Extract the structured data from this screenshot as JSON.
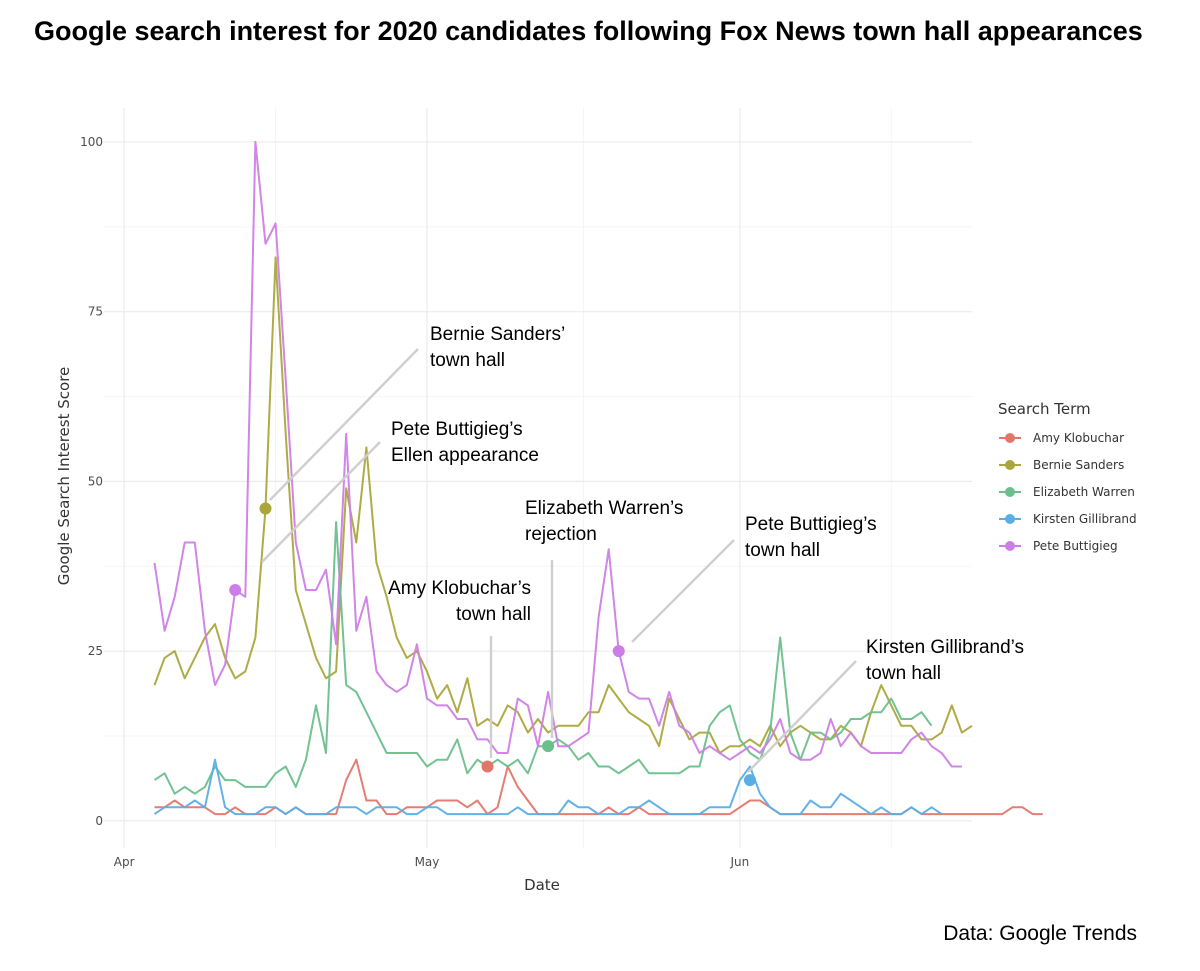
{
  "title": "Google search interest for 2020 candidates following Fox News town hall appearances",
  "source": "Data: Google Trends",
  "chart_data": {
    "type": "line",
    "xlabel": "Date",
    "ylabel": "Google Search Interest Score",
    "x_ticks": [
      {
        "date": "2019-04-01",
        "label": "Apr"
      },
      {
        "date": "2019-05-01",
        "label": "May"
      },
      {
        "date": "2019-06-01",
        "label": "Jun"
      }
    ],
    "y_ticks": [
      0,
      25,
      50,
      75,
      100
    ],
    "ylim": [
      -4,
      105
    ],
    "xlim": [
      "2019-03-30",
      "2019-06-24"
    ],
    "x_start": "2019-04-04",
    "grid": true,
    "legend": {
      "title": "Search Term",
      "position": "right"
    },
    "series": [
      {
        "name": "Amy Klobuchar",
        "color": "#e3766b",
        "values": [
          2,
          2,
          3,
          2,
          2,
          2,
          1,
          1,
          2,
          1,
          1,
          1,
          2,
          1,
          2,
          1,
          1,
          1,
          1,
          6,
          9,
          3,
          3,
          1,
          1,
          2,
          2,
          2,
          3,
          3,
          3,
          2,
          3,
          1,
          2,
          8,
          5,
          3,
          1,
          1,
          1,
          1,
          1,
          1,
          1,
          2,
          1,
          1,
          2,
          1,
          1,
          1,
          1,
          1,
          1,
          1,
          1,
          1,
          2,
          3,
          3,
          2,
          1,
          1,
          1,
          1,
          1,
          1,
          1,
          1,
          1,
          1,
          1,
          1,
          1,
          2,
          1,
          1,
          1,
          1,
          1,
          1,
          1,
          1,
          1,
          2,
          2,
          1,
          1
        ]
      },
      {
        "name": "Bernie Sanders",
        "color": "#aba63c",
        "values": [
          20,
          24,
          25,
          21,
          24,
          27,
          29,
          24,
          21,
          22,
          27,
          46,
          83,
          57,
          34,
          29,
          24,
          21,
          22,
          49,
          41,
          55,
          38,
          33,
          27,
          24,
          25,
          22,
          18,
          20,
          16,
          21,
          14,
          15,
          14,
          17,
          16,
          13,
          15,
          13,
          14,
          14,
          14,
          16,
          16,
          20,
          18,
          16,
          15,
          14,
          11,
          18,
          15,
          12,
          13,
          13,
          10,
          11,
          11,
          12,
          11,
          14,
          11,
          13,
          14,
          13,
          12,
          12,
          14,
          13,
          11,
          16,
          20,
          17,
          14,
          14,
          12,
          12,
          13,
          17,
          13,
          14
        ]
      },
      {
        "name": "Elizabeth Warren",
        "color": "#6bbf8b",
        "values": [
          6,
          7,
          4,
          5,
          4,
          5,
          8,
          6,
          6,
          5,
          5,
          5,
          7,
          8,
          5,
          9,
          17,
          10,
          44,
          20,
          19,
          16,
          13,
          10,
          10,
          10,
          10,
          8,
          9,
          9,
          12,
          7,
          9,
          8,
          9,
          8,
          9,
          7,
          11,
          11,
          12,
          11,
          9,
          10,
          8,
          8,
          7,
          8,
          9,
          7,
          7,
          7,
          7,
          8,
          8,
          14,
          16,
          17,
          12,
          10,
          9,
          13,
          27,
          13,
          9,
          13,
          13,
          12,
          13,
          15,
          15,
          16,
          16,
          18,
          15,
          15,
          16,
          14
        ]
      },
      {
        "name": "Kirsten Gillibrand",
        "color": "#5aaee6",
        "values": [
          1,
          2,
          2,
          2,
          3,
          2,
          9,
          2,
          1,
          1,
          1,
          2,
          2,
          1,
          2,
          1,
          1,
          1,
          2,
          2,
          2,
          1,
          2,
          2,
          2,
          1,
          1,
          2,
          2,
          1,
          1,
          1,
          1,
          1,
          1,
          1,
          2,
          1,
          1,
          1,
          1,
          3,
          2,
          2,
          1,
          1,
          1,
          2,
          2,
          3,
          2,
          1,
          1,
          1,
          1,
          2,
          2,
          2,
          6,
          8,
          4,
          2,
          1,
          1,
          1,
          3,
          2,
          2,
          4,
          3,
          2,
          1,
          2,
          1,
          1,
          2,
          1,
          2,
          1
        ]
      },
      {
        "name": "Pete Buttigieg",
        "color": "#cd7ee6",
        "values": [
          38,
          28,
          33,
          41,
          41,
          28,
          20,
          23,
          34,
          33,
          100,
          85,
          88,
          65,
          41,
          34,
          34,
          37,
          26,
          57,
          28,
          33,
          22,
          20,
          19,
          20,
          26,
          18,
          17,
          17,
          15,
          15,
          12,
          12,
          10,
          10,
          18,
          17,
          11,
          19,
          11,
          11,
          12,
          13,
          30,
          40,
          25,
          19,
          18,
          18,
          14,
          19,
          14,
          13,
          10,
          11,
          10,
          9,
          10,
          11,
          10,
          12,
          15,
          10,
          9,
          9,
          10,
          15,
          11,
          13,
          11,
          10,
          10,
          10,
          10,
          12,
          13,
          11,
          10,
          8,
          8
        ]
      }
    ],
    "highlights": [
      {
        "series": "Bernie Sanders",
        "date": "2019-04-15",
        "value": 46
      },
      {
        "series": "Pete Buttigieg",
        "date": "2019-04-12",
        "value": 34
      },
      {
        "series": "Amy Klobuchar",
        "date": "2019-05-07",
        "value": 8
      },
      {
        "series": "Elizabeth Warren",
        "date": "2019-05-13",
        "value": 11
      },
      {
        "series": "Pete Buttigieg",
        "date": "2019-05-20",
        "value": 25
      },
      {
        "series": "Kirsten Gillibrand",
        "date": "2019-06-02",
        "value": 6
      }
    ],
    "annotations": [
      {
        "lines": [
          "Bernie Sanders’",
          "town hall"
        ]
      },
      {
        "lines": [
          "Pete Buttigieg’s",
          "Ellen appearance"
        ]
      },
      {
        "lines": [
          "Amy Klobuchar’s",
          "town hall"
        ]
      },
      {
        "lines": [
          "Elizabeth Warren’s",
          "rejection"
        ]
      },
      {
        "lines": [
          "Pete Buttigieg’s",
          "town hall"
        ]
      },
      {
        "lines": [
          "Kirsten Gillibrand’s",
          "town hall"
        ]
      }
    ]
  }
}
